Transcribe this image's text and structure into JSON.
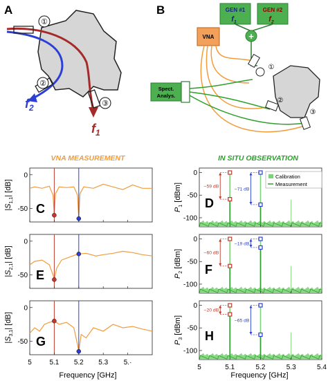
{
  "panels": {
    "A": "A",
    "B": "B",
    "C": "C",
    "D": "D",
    "E": "E",
    "F": "F",
    "G": "G",
    "H": "H"
  },
  "schematic_a": {
    "port_labels": [
      "①",
      "②",
      "③"
    ],
    "f2_label": "f",
    "f2_sub": "2",
    "f1_label": "f",
    "f1_sub": "1"
  },
  "schematic_b": {
    "gen1_line1": "GEN #1",
    "gen1_line2": "f",
    "gen1_sub": "1",
    "gen2_line1": "GEN #2",
    "gen2_line2": "f",
    "gen2_sub": "2",
    "vna_label": "VNA",
    "spect_line1": "Spect.",
    "spect_line2": "Analys.",
    "port_labels": [
      "①",
      "②",
      "③"
    ],
    "adder_symbol": "+"
  },
  "headers": {
    "left": "VNA MEASUREMENT",
    "right": "IN SITU OBSERVATION"
  },
  "colors": {
    "vna_orange": "#f39c3a",
    "measurement_green": "#2ca02c",
    "calibration_green": "#7fd17a",
    "marker_red": "#c0392b",
    "marker_blue": "#2b3fd6",
    "gen_green": "#4caf50",
    "box_orange": "#f3a15a",
    "dark_red": "#a52a2a",
    "path_blue": "#2b3fd6"
  },
  "chart_data": [
    {
      "panel": "C",
      "type": "line",
      "ylabel_main": "|S",
      "ylabel_sub": "1,1",
      "ylabel_unit": "| [dB]",
      "xlim": [
        5,
        5.5
      ],
      "ylim": [
        -70,
        10
      ],
      "yticks": [
        0,
        -50
      ],
      "ytick_labels": [
        "0",
        "-50"
      ],
      "vlines": [
        5.1,
        5.2
      ],
      "markers": [
        {
          "x": 5.1,
          "y": -60,
          "color": "red"
        },
        {
          "x": 5.2,
          "y": -65,
          "color": "blue"
        }
      ],
      "series": [
        {
          "x": [
            5.0,
            5.02,
            5.05,
            5.08,
            5.095,
            5.1,
            5.105,
            5.12,
            5.15,
            5.18,
            5.195,
            5.2,
            5.205,
            5.22,
            5.26,
            5.3,
            5.34,
            5.38,
            5.42,
            5.46,
            5.5
          ],
          "values": [
            -20,
            -18,
            -20,
            -17,
            -30,
            -60,
            -28,
            -18,
            -19,
            -18,
            -30,
            -65,
            -28,
            -18,
            -20,
            -14,
            -18,
            -22,
            -15,
            -20,
            -20
          ]
        }
      ]
    },
    {
      "panel": "E",
      "type": "line",
      "ylabel_main": "|S",
      "ylabel_sub": "2,1",
      "ylabel_unit": "| [dB]",
      "xlim": [
        5,
        5.5
      ],
      "ylim": [
        -70,
        10
      ],
      "yticks": [
        0,
        -50
      ],
      "ytick_labels": [
        "0",
        "-50"
      ],
      "vlines": [
        5.1,
        5.2
      ],
      "markers": [
        {
          "x": 5.1,
          "y": -57,
          "color": "red"
        },
        {
          "x": 5.2,
          "y": -19,
          "color": "blue"
        }
      ],
      "series": [
        {
          "x": [
            5.0,
            5.02,
            5.05,
            5.08,
            5.095,
            5.1,
            5.11,
            5.13,
            5.16,
            5.19,
            5.2,
            5.23,
            5.27,
            5.3,
            5.34,
            5.38,
            5.42,
            5.46,
            5.5
          ],
          "values": [
            -35,
            -30,
            -28,
            -35,
            -50,
            -57,
            -40,
            -28,
            -24,
            -20,
            -19,
            -18,
            -22,
            -20,
            -18,
            -15,
            -17,
            -20,
            -22
          ]
        }
      ]
    },
    {
      "panel": "G",
      "type": "line",
      "ylabel_main": "|S",
      "ylabel_sub": "3,1",
      "ylabel_unit": "| [dB]",
      "xlim": [
        5,
        5.5
      ],
      "ylim": [
        -70,
        10
      ],
      "yticks": [
        0,
        -50
      ],
      "ytick_labels": [
        "0",
        "-50"
      ],
      "vlines": [
        5.1,
        5.2
      ],
      "markers": [
        {
          "x": 5.1,
          "y": -20,
          "color": "red"
        },
        {
          "x": 5.2,
          "y": -65,
          "color": "blue"
        }
      ],
      "series": [
        {
          "x": [
            5.0,
            5.02,
            5.04,
            5.06,
            5.08,
            5.1,
            5.12,
            5.15,
            5.18,
            5.195,
            5.2,
            5.21,
            5.23,
            5.26,
            5.3,
            5.34,
            5.38,
            5.42,
            5.46,
            5.5
          ],
          "values": [
            -38,
            -30,
            -35,
            -25,
            -22,
            -20,
            -25,
            -22,
            -30,
            -55,
            -65,
            -40,
            -45,
            -30,
            -35,
            -25,
            -30,
            -28,
            -32,
            -35
          ]
        }
      ]
    },
    {
      "panel": "D",
      "type": "line",
      "ylabel_main": "P",
      "ylabel_sub": "1",
      "ylabel_unit": " [dBm]",
      "xlim": [
        5,
        5.4
      ],
      "ylim": [
        -120,
        10
      ],
      "yticks": [
        0,
        -50,
        -100
      ],
      "ytick_labels": [
        "0",
        "-50",
        "-100"
      ],
      "legend": [
        "Calibration",
        "Measurement"
      ],
      "legend_position": "top-right",
      "peaks": [
        {
          "x": 5.1,
          "top": 0,
          "bottom": -59,
          "color": "red",
          "label": "−59 dB"
        },
        {
          "x": 5.2,
          "top": 0,
          "bottom": -71,
          "color": "blue",
          "label": "−71 dB"
        }
      ],
      "calibration_peak_5_3": -60,
      "noise_floor": -115
    },
    {
      "panel": "F",
      "type": "line",
      "ylabel_main": "P",
      "ylabel_sub": "2",
      "ylabel_unit": " [dBm]",
      "xlim": [
        5,
        5.4
      ],
      "ylim": [
        -120,
        10
      ],
      "yticks": [
        0,
        -50,
        -100
      ],
      "ytick_labels": [
        "0",
        "-50",
        "-100"
      ],
      "peaks": [
        {
          "x": 5.1,
          "top": 0,
          "bottom": -60,
          "color": "red",
          "label": "−60 dB"
        },
        {
          "x": 5.2,
          "top": 0,
          "bottom": -19,
          "color": "blue",
          "label": "−19 dB"
        }
      ],
      "calibration_peak_5_3": -60,
      "noise_floor": -115
    },
    {
      "panel": "H",
      "type": "line",
      "ylabel_main": "P",
      "ylabel_sub": "3",
      "ylabel_unit": " [dBm]",
      "xlim": [
        5,
        5.4
      ],
      "ylim": [
        -120,
        10
      ],
      "yticks": [
        0,
        -50,
        -100
      ],
      "ytick_labels": [
        "0",
        "-50",
        "-100"
      ],
      "peaks": [
        {
          "x": 5.1,
          "top": 0,
          "bottom": -20,
          "color": "red",
          "label": "−20 dB"
        },
        {
          "x": 5.2,
          "top": 0,
          "bottom": -65,
          "color": "blue",
          "label": "−65 dB"
        }
      ],
      "calibration_peak_5_3": -60,
      "noise_floor": -115
    }
  ],
  "x_axes": {
    "left": {
      "ticks": [
        "5",
        "5.1",
        "5.2",
        "5.3",
        "5.·"
      ],
      "label": "Frequency [GHz]"
    },
    "right": {
      "ticks": [
        "5",
        "5.1",
        "5.2",
        "5.3",
        "5.4"
      ],
      "label": "Frequency [GHz]"
    }
  }
}
